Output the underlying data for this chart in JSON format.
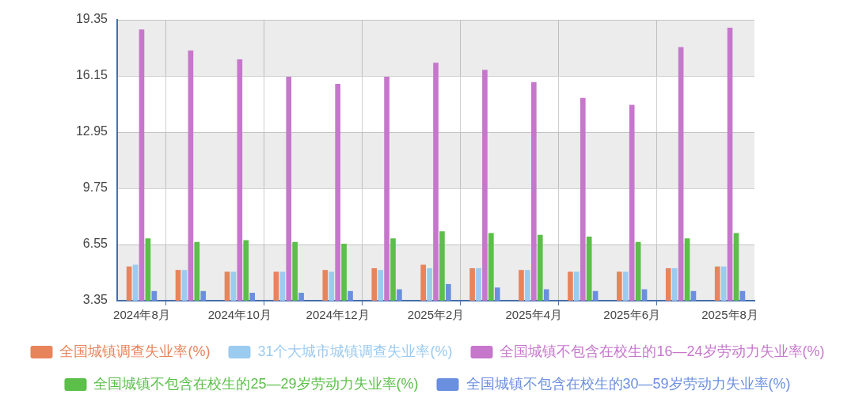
{
  "chart_data": {
    "type": "bar",
    "categories": [
      "2024年8月",
      null,
      "2024年10月",
      null,
      "2024年12月",
      null,
      "2025年2月",
      null,
      "2025年4月",
      null,
      "2025年6月",
      null,
      "2025年8月"
    ],
    "series": [
      {
        "name": "全国城镇调查失业率(%)",
        "color": "#e8845c",
        "values": [
          5.3,
          5.1,
          5.0,
          5.0,
          5.1,
          5.2,
          5.4,
          5.2,
          5.1,
          5.0,
          5.0,
          5.2,
          5.3
        ]
      },
      {
        "name": "31个大城市城镇调查失业率(%)",
        "color": "#9ccbf0",
        "values": [
          5.4,
          5.1,
          5.0,
          5.0,
          5.0,
          5.1,
          5.2,
          5.2,
          5.1,
          5.0,
          5.0,
          5.2,
          5.3
        ]
      },
      {
        "name": "全国城镇不包含在校生的16—24岁劳动力失业率(%)",
        "color": "#c677cc",
        "values": [
          18.8,
          17.6,
          17.1,
          16.1,
          15.7,
          16.1,
          16.9,
          16.5,
          15.8,
          14.9,
          14.5,
          17.8,
          18.9
        ]
      },
      {
        "name": "全国城镇不包含在校生的25—29岁劳动力失业率(%)",
        "color": "#5bbf49",
        "values": [
          6.9,
          6.7,
          6.8,
          6.7,
          6.6,
          6.9,
          7.3,
          7.2,
          7.1,
          7.0,
          6.7,
          6.9,
          7.2
        ]
      },
      {
        "name": "全国城镇不包含在校生的30—59岁劳动力失业率(%)",
        "color": "#6b8fdf",
        "values": [
          3.9,
          3.9,
          3.8,
          3.8,
          3.9,
          4.0,
          4.3,
          4.1,
          4.0,
          3.9,
          4.0,
          3.9,
          3.9
        ]
      }
    ],
    "ylim": [
      3.35,
      19.35
    ],
    "yticks": [
      3.35,
      6.55,
      9.75,
      12.95,
      16.15,
      19.35
    ],
    "grid": true,
    "legend": "bottom"
  }
}
